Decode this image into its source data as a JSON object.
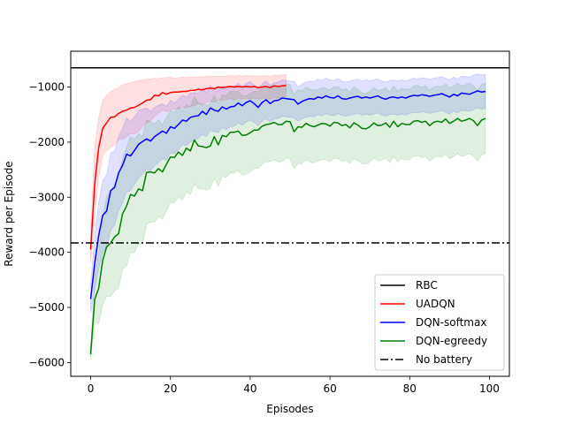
{
  "chart_data": {
    "type": "line",
    "title": "",
    "xlabel": "Episodes",
    "ylabel": "Reward per Episode",
    "xlim": [
      -5,
      105
    ],
    "ylim": [
      -6250,
      -350
    ],
    "xticks": [
      0,
      20,
      40,
      60,
      80,
      100
    ],
    "xtick_labels": [
      "0",
      "20",
      "40",
      "60",
      "80",
      "100"
    ],
    "yticks": [
      -6000,
      -5000,
      -4000,
      -3000,
      -2000,
      -1000
    ],
    "ytick_labels": [
      "−6000",
      "−5000",
      "−4000",
      "−3000",
      "−2000",
      "−1000"
    ],
    "grid": false,
    "legend_position": "lower right",
    "hlines": [
      {
        "name": "RBC",
        "y": -650,
        "color": "#000000",
        "style": "solid"
      },
      {
        "name": "No battery",
        "y": -3830,
        "color": "#000000",
        "style": "dashdot"
      }
    ],
    "series": [
      {
        "name": "UADQN",
        "color": "#ff0000",
        "x_start": 0,
        "values": [
          -3950,
          -2750,
          -2100,
          -1750,
          -1650,
          -1550,
          -1540,
          -1480,
          -1440,
          -1420,
          -1380,
          -1370,
          -1330,
          -1290,
          -1240,
          -1230,
          -1150,
          -1160,
          -1100,
          -1130,
          -1100,
          -1090,
          -1090,
          -1080,
          -1080,
          -1060,
          -1060,
          -1040,
          -1050,
          -1030,
          -1020,
          -1030,
          -1000,
          -1010,
          -1000,
          -990,
          -1000,
          -990,
          -1000,
          -990,
          -1000,
          -990,
          -1010,
          -1000,
          -990,
          -1010,
          -980,
          -990,
          -980,
          -970
        ],
        "band_lower": [
          -4200,
          -3300,
          -2650,
          -2250,
          -2150,
          -2100,
          -2050,
          -1950,
          -1950,
          -1900,
          -1850,
          -1850,
          -1800,
          -1720,
          -1650,
          -1620,
          -1530,
          -1480,
          -1420,
          -1450,
          -1420,
          -1400,
          -1390,
          -1380,
          -1370,
          -1350,
          -1340,
          -1300,
          -1320,
          -1280,
          -1260,
          -1270,
          -1240,
          -1240,
          -1230,
          -1210,
          -1230,
          -1200,
          -1220,
          -1200,
          -1220,
          -1200,
          -1220,
          -1210,
          -1200,
          -1220,
          -1190,
          -1200,
          -1180,
          -1170
        ],
        "band_upper": [
          -3600,
          -2100,
          -1550,
          -1250,
          -1150,
          -1080,
          -1040,
          -1010,
          -960,
          -940,
          -920,
          -900,
          -880,
          -870,
          -860,
          -850,
          -840,
          -850,
          -830,
          -830,
          -820,
          -840,
          -830,
          -820,
          -830,
          -820,
          -820,
          -810,
          -820,
          -810,
          -800,
          -810,
          -800,
          -810,
          -800,
          -790,
          -800,
          -790,
          -800,
          -790,
          -800,
          -790,
          -810,
          -800,
          -790,
          -810,
          -780,
          -790,
          -780,
          -770
        ]
      },
      {
        "name": "DQN-softmax",
        "color": "#0000ff",
        "x_start": 0,
        "values": [
          -4850,
          -4200,
          -3700,
          -3330,
          -3250,
          -2880,
          -2820,
          -2560,
          -2420,
          -2220,
          -2250,
          -2150,
          -2040,
          -1990,
          -1940,
          -1980,
          -1900,
          -1850,
          -1800,
          -1840,
          -1720,
          -1750,
          -1680,
          -1600,
          -1620,
          -1550,
          -1530,
          -1520,
          -1440,
          -1500,
          -1380,
          -1420,
          -1440,
          -1360,
          -1400,
          -1360,
          -1350,
          -1290,
          -1340,
          -1280,
          -1250,
          -1300,
          -1370,
          -1280,
          -1230,
          -1300,
          -1250,
          -1240,
          -1200,
          -1210,
          -1220,
          -1230,
          -1310,
          -1260,
          -1230,
          -1210,
          -1220,
          -1180,
          -1200,
          -1160,
          -1190,
          -1200,
          -1160,
          -1210,
          -1220,
          -1200,
          -1180,
          -1170,
          -1200,
          -1180,
          -1200,
          -1180,
          -1160,
          -1200,
          -1220,
          -1190,
          -1180,
          -1200,
          -1180,
          -1200,
          -1170,
          -1150,
          -1160,
          -1140,
          -1150,
          -1170,
          -1150,
          -1140,
          -1120,
          -1150,
          -1180,
          -1130,
          -1160,
          -1110,
          -1120,
          -1130,
          -1100,
          -1070,
          -1090,
          -1080
        ],
        "band_lower": [
          -5100,
          -4700,
          -4300,
          -4000,
          -3900,
          -3600,
          -3500,
          -3250,
          -3100,
          -2900,
          -2880,
          -2760,
          -2650,
          -2580,
          -2500,
          -2520,
          -2430,
          -2370,
          -2300,
          -2330,
          -2200,
          -2210,
          -2130,
          -2050,
          -2060,
          -1990,
          -1960,
          -1930,
          -1860,
          -1900,
          -1790,
          -1810,
          -1820,
          -1740,
          -1770,
          -1720,
          -1710,
          -1650,
          -1690,
          -1630,
          -1600,
          -1640,
          -1700,
          -1620,
          -1570,
          -1630,
          -1580,
          -1570,
          -1530,
          -1540,
          -1550,
          -1560,
          -1620,
          -1580,
          -1550,
          -1530,
          -1540,
          -1500,
          -1520,
          -1480,
          -1510,
          -1520,
          -1480,
          -1520,
          -1530,
          -1510,
          -1490,
          -1480,
          -1510,
          -1490,
          -1510,
          -1490,
          -1470,
          -1510,
          -1530,
          -1500,
          -1490,
          -1510,
          -1490,
          -1510,
          -1480,
          -1460,
          -1470,
          -1450,
          -1460,
          -1480,
          -1460,
          -1450,
          -1430,
          -1460,
          -1490,
          -1440,
          -1470,
          -1420,
          -1430,
          -1440,
          -1410,
          -1380,
          -1400,
          -1390
        ],
        "band_upper": [
          -4600,
          -3700,
          -3100,
          -2700,
          -2600,
          -2200,
          -2150,
          -1900,
          -1750,
          -1560,
          -1620,
          -1540,
          -1430,
          -1400,
          -1380,
          -1440,
          -1370,
          -1330,
          -1300,
          -1350,
          -1240,
          -1290,
          -1230,
          -1150,
          -1180,
          -1110,
          -1100,
          -1110,
          -1020,
          -1100,
          -970,
          -1030,
          -1060,
          -980,
          -1030,
          -1000,
          -990,
          -930,
          -990,
          -930,
          -900,
          -960,
          -1040,
          -940,
          -890,
          -970,
          -920,
          -910,
          -870,
          -880,
          -890,
          -900,
          -1000,
          -940,
          -910,
          -890,
          -900,
          -860,
          -880,
          -840,
          -870,
          -880,
          -840,
          -900,
          -910,
          -890,
          -870,
          -860,
          -890,
          -870,
          -890,
          -870,
          -850,
          -890,
          -910,
          -880,
          -870,
          -890,
          -870,
          -890,
          -860,
          -840,
          -850,
          -830,
          -840,
          -860,
          -840,
          -830,
          -810,
          -840,
          -870,
          -820,
          -850,
          -800,
          -810,
          -820,
          -790,
          -760,
          -780,
          -770
        ]
      },
      {
        "name": "DQN-egreedy",
        "color": "#008000",
        "x_start": 0,
        "values": [
          -5850,
          -4850,
          -4650,
          -4150,
          -3900,
          -3830,
          -3720,
          -3660,
          -3300,
          -3160,
          -2950,
          -2980,
          -2850,
          -2880,
          -2550,
          -2540,
          -2560,
          -2480,
          -2540,
          -2400,
          -2270,
          -2280,
          -2180,
          -2240,
          -2110,
          -2160,
          -1960,
          -2070,
          -2080,
          -2100,
          -2070,
          -1900,
          -2050,
          -1880,
          -1900,
          -1820,
          -1820,
          -1800,
          -1880,
          -1870,
          -1830,
          -1780,
          -1780,
          -1710,
          -1680,
          -1670,
          -1640,
          -1680,
          -1680,
          -1620,
          -1630,
          -1810,
          -1720,
          -1730,
          -1660,
          -1700,
          -1720,
          -1690,
          -1660,
          -1670,
          -1710,
          -1640,
          -1650,
          -1700,
          -1680,
          -1740,
          -1650,
          -1690,
          -1750,
          -1760,
          -1720,
          -1650,
          -1700,
          -1690,
          -1650,
          -1730,
          -1620,
          -1720,
          -1660,
          -1680,
          -1680,
          -1620,
          -1610,
          -1640,
          -1620,
          -1700,
          -1640,
          -1620,
          -1640,
          -1580,
          -1660,
          -1620,
          -1570,
          -1620,
          -1600,
          -1570,
          -1610,
          -1700,
          -1600,
          -1570
        ],
        "band_lower": [
          -5950,
          -5250,
          -5300,
          -4950,
          -4800,
          -4800,
          -4700,
          -4650,
          -4300,
          -4250,
          -4000,
          -4000,
          -3850,
          -3850,
          -3500,
          -3450,
          -3450,
          -3350,
          -3400,
          -3250,
          -3100,
          -3100,
          -3000,
          -3050,
          -2900,
          -2950,
          -2750,
          -2850,
          -2850,
          -2870,
          -2840,
          -2650,
          -2800,
          -2620,
          -2640,
          -2560,
          -2560,
          -2520,
          -2600,
          -2580,
          -2540,
          -2480,
          -2480,
          -2400,
          -2360,
          -2350,
          -2320,
          -2360,
          -2350,
          -2290,
          -2300,
          -2480,
          -2390,
          -2390,
          -2320,
          -2360,
          -2380,
          -2340,
          -2310,
          -2320,
          -2360,
          -2290,
          -2300,
          -2350,
          -2330,
          -2390,
          -2300,
          -2340,
          -2390,
          -2400,
          -2360,
          -2290,
          -2340,
          -2330,
          -2290,
          -2370,
          -2260,
          -2360,
          -2300,
          -2320,
          -2320,
          -2260,
          -2250,
          -2280,
          -2260,
          -2340,
          -2280,
          -2260,
          -2280,
          -2220,
          -2300,
          -2260,
          -2210,
          -2260,
          -2240,
          -2210,
          -2250,
          -2340,
          -2240,
          -2210
        ],
        "band_upper": [
          -5700,
          -4450,
          -4000,
          -3350,
          -3000,
          -2900,
          -2750,
          -2650,
          -2300,
          -2100,
          -1900,
          -1950,
          -1850,
          -1900,
          -1600,
          -1630,
          -1670,
          -1600,
          -1680,
          -1550,
          -1430,
          -1460,
          -1360,
          -1430,
          -1320,
          -1370,
          -1170,
          -1290,
          -1310,
          -1330,
          -1300,
          -1150,
          -1300,
          -1140,
          -1160,
          -1080,
          -1080,
          -1080,
          -1160,
          -1160,
          -1120,
          -1080,
          -1080,
          -1020,
          -1000,
          -990,
          -960,
          -1000,
          -1010,
          -950,
          -960,
          -1140,
          -1050,
          -1070,
          -1000,
          -1040,
          -1060,
          -1040,
          -1010,
          -1020,
          -1060,
          -990,
          -1000,
          -1050,
          -1030,
          -1090,
          -1000,
          -1040,
          -1110,
          -1120,
          -1080,
          -1010,
          -1060,
          -1050,
          -1010,
          -1090,
          -980,
          -1080,
          -1020,
          -1040,
          -1040,
          -980,
          -970,
          -1000,
          -980,
          -1060,
          -1000,
          -980,
          -1000,
          -940,
          -1020,
          -980,
          -930,
          -980,
          -960,
          -930,
          -970,
          -1060,
          -960,
          -930
        ]
      }
    ]
  },
  "legend": {
    "items": [
      {
        "label": "RBC",
        "color": "#000000",
        "style": "solid"
      },
      {
        "label": "UADQN",
        "color": "#ff0000",
        "style": "solid"
      },
      {
        "label": "DQN-softmax",
        "color": "#0000ff",
        "style": "solid"
      },
      {
        "label": "DQN-egreedy",
        "color": "#008000",
        "style": "solid"
      },
      {
        "label": "No battery",
        "color": "#000000",
        "style": "dashdot"
      }
    ]
  }
}
